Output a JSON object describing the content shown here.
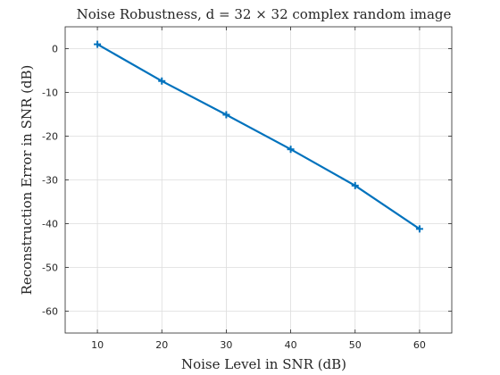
{
  "chart_data": {
    "type": "line",
    "title": "Noise Robustness, d = 32 × 32 complex random image",
    "xlabel": "Noise Level in SNR (dB)",
    "ylabel": "Reconstruction Error in SNR (dB)",
    "xlim": [
      5,
      65
    ],
    "ylim": [
      -65,
      5
    ],
    "xticks": [
      10,
      20,
      30,
      40,
      50,
      60
    ],
    "yticks": [
      0,
      -10,
      -20,
      -30,
      -40,
      -50,
      -60
    ],
    "xtick_labels": [
      "10",
      "20",
      "30",
      "40",
      "50",
      "60"
    ],
    "ytick_labels": [
      "0",
      "-10",
      "-20",
      "-30",
      "-40",
      "-50",
      "-60"
    ],
    "grid": true,
    "series": [
      {
        "marker": "plus",
        "color": "#0072BD",
        "x": [
          10,
          20,
          30,
          40,
          50,
          60
        ],
        "y": [
          1,
          -7.4,
          -15.1,
          -23,
          -31.3,
          -41.2
        ]
      }
    ]
  },
  "colors": {
    "axis": "#262626",
    "grid": "#dcdcdc",
    "series": "#0072BD"
  }
}
